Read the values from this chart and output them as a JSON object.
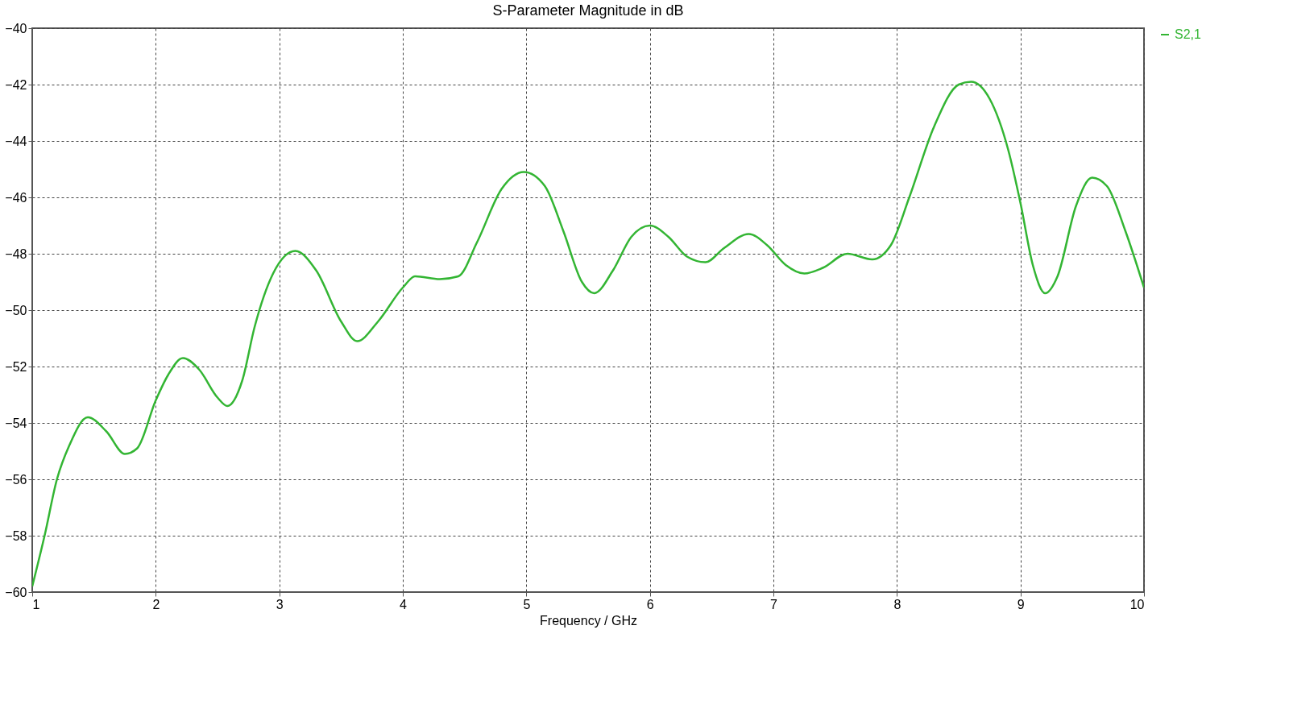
{
  "chart_data": {
    "type": "line",
    "title": "S-Parameter Magnitude in dB",
    "xlabel": "Frequency / GHz",
    "xlim": [
      1,
      10
    ],
    "xticks": [
      1,
      2,
      3,
      4,
      5,
      6,
      7,
      8,
      9,
      10
    ],
    "ylim": [
      -60,
      -40
    ],
    "yticks": [
      -60,
      -58,
      -56,
      -54,
      -52,
      -50,
      -48,
      -46,
      -44,
      -42,
      -40
    ],
    "grid": true,
    "legend": "right",
    "line_style": "solid",
    "marker": "none",
    "series": [
      {
        "name": "S2,1",
        "color": "#33b533",
        "x": [
          1.0,
          1.1,
          1.2,
          1.3,
          1.45,
          1.6,
          1.75,
          1.85,
          2.0,
          2.1,
          2.22,
          2.35,
          2.5,
          2.58,
          2.7,
          2.8,
          2.95,
          3.13,
          3.3,
          3.5,
          3.63,
          3.8,
          4.0,
          4.1,
          4.3,
          4.45,
          4.6,
          4.8,
          4.98,
          5.15,
          5.3,
          5.45,
          5.55,
          5.7,
          5.85,
          6.0,
          6.15,
          6.3,
          6.45,
          6.6,
          6.8,
          6.95,
          7.1,
          7.25,
          7.4,
          7.6,
          7.8,
          7.95,
          8.1,
          8.3,
          8.5,
          8.6,
          8.75,
          8.9,
          9.0,
          9.1,
          9.2,
          9.3,
          9.45,
          9.58,
          9.7,
          9.85,
          10.0
        ],
        "values": [
          -59.8,
          -58,
          -56,
          -54.8,
          -53.8,
          -54.3,
          -55.1,
          -54.9,
          -53.2,
          -52.3,
          -51.7,
          -52.1,
          -53.1,
          -53.4,
          -52.5,
          -50.6,
          -48.7,
          -47.9,
          -48.6,
          -50.4,
          -51.1,
          -50.4,
          -49.2,
          -48.8,
          -48.9,
          -48.8,
          -47.6,
          -45.7,
          -45.1,
          -45.6,
          -47.2,
          -49.0,
          -49.4,
          -48.6,
          -47.4,
          -47.0,
          -47.4,
          -48.1,
          -48.3,
          -47.8,
          -47.3,
          -47.7,
          -48.4,
          -48.7,
          -48.5,
          -48.0,
          -48.2,
          -47.7,
          -46.0,
          -43.5,
          -42.0,
          -41.9,
          -42.5,
          -44.3,
          -46.2,
          -48.4,
          -49.4,
          -48.8,
          -46.3,
          -45.3,
          -45.6,
          -47.2,
          -49.2
        ]
      }
    ]
  }
}
